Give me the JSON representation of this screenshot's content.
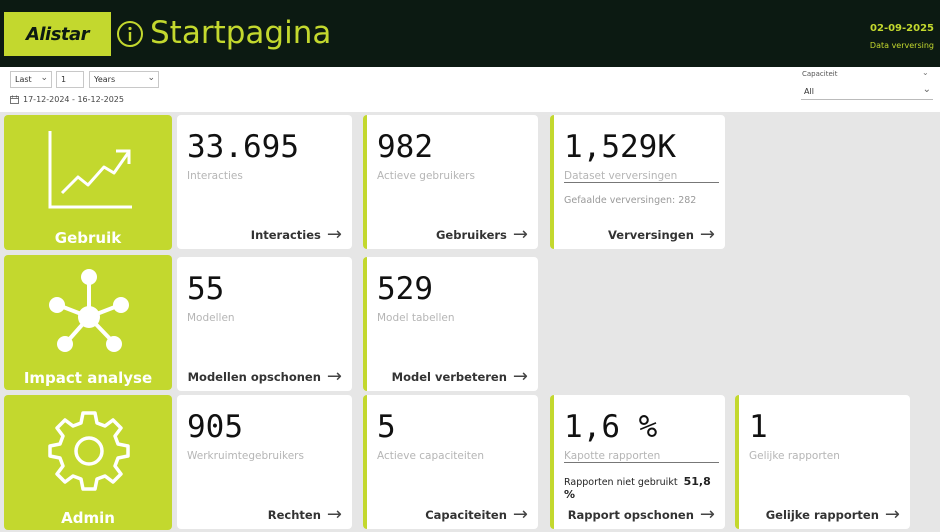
{
  "header": {
    "logo_text": "Alistar",
    "title": "Startpagina",
    "date": "02-09-2025",
    "refresh_label": "Data verversing"
  },
  "filters": {
    "period_mode": "Last",
    "period_count": "1",
    "period_unit": "Years",
    "date_range": "17-12-2024 - 16-12-2025",
    "capacity_label": "Capaciteit",
    "capacity_value": "All"
  },
  "sections": {
    "usage": "Gebruik",
    "impact": "Impact analyse",
    "admin": "Admin"
  },
  "cards": {
    "interactions": {
      "value": "33.695",
      "label": "Interacties",
      "link": "Interacties"
    },
    "users": {
      "value": "982",
      "label": "Actieve gebruikers",
      "link": "Gebruikers"
    },
    "refreshes": {
      "value": "1,529K",
      "label": "Dataset verversingen",
      "sub": "Gefaalde verversingen: 282",
      "link": "Verversingen"
    },
    "models": {
      "value": "55",
      "label": "Modellen",
      "link": "Modellen opschonen"
    },
    "model_tables": {
      "value": "529",
      "label": "Model tabellen",
      "link": "Model verbeteren"
    },
    "workspace_users": {
      "value": "905",
      "label": "Werkruimtegebruikers",
      "link": "Rechten"
    },
    "capacities": {
      "value": "5",
      "label": "Actieve capaciteiten",
      "link": "Capaciteiten"
    },
    "broken_reports": {
      "value": "1,6 %",
      "label": "Kapotte rapporten",
      "sub_label": "Rapporten niet gebruikt",
      "sub_value": "51,8 %",
      "link": "Rapport opschonen"
    },
    "equal_reports": {
      "value": "1",
      "label": "Gelijke rapporten",
      "link": "Gelijke rapporten"
    }
  },
  "colors": {
    "accent": "#c3d82e",
    "header_bg": "#0c1a12",
    "page_bg": "#e6e6e6"
  },
  "icons": {
    "header": "info-icon",
    "usage": "line-chart-trend-icon",
    "impact": "network-hub-icon",
    "admin": "gear-icon",
    "card_link": "arrow-right-icon",
    "date": "calendar-icon"
  }
}
